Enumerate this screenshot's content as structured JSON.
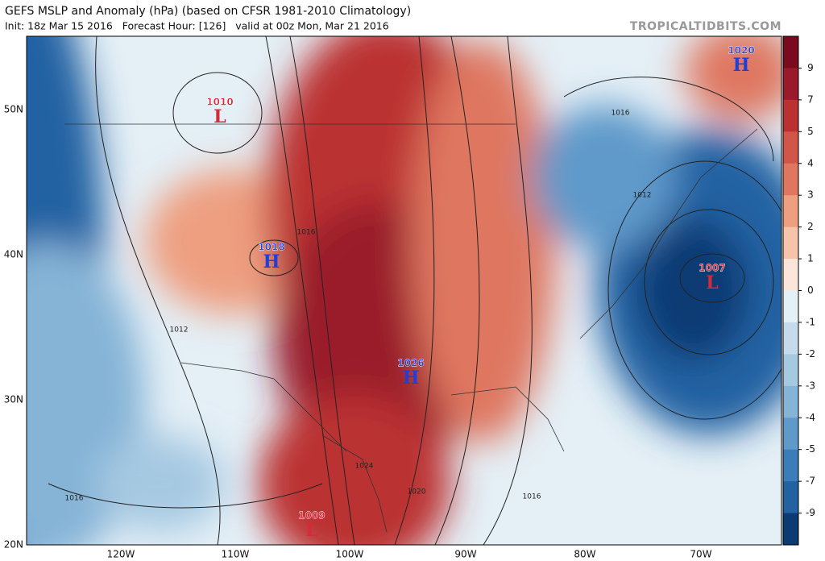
{
  "header": {
    "title": "GEFS MSLP and Anomaly (hPa) (based on CFSR 1981-2010 Climatology)",
    "subtitle": "Init: 18z Mar 15 2016   Forecast Hour: [126]   valid at 00z Mon, Mar 21 2016",
    "watermark": "TROPICALTIDBITS.COM"
  },
  "map": {
    "lat_labels": [
      "50N",
      "40N",
      "30N",
      "20N"
    ],
    "lon_labels": [
      "120W",
      "110W",
      "100W",
      "90W",
      "80W",
      "70W"
    ],
    "centers": [
      {
        "value": "1010",
        "letter": "L"
      },
      {
        "value": "1018",
        "letter": "H"
      },
      {
        "value": "1026",
        "letter": "H"
      },
      {
        "value": "1020",
        "letter": "H"
      },
      {
        "value": "1007",
        "letter": "L"
      },
      {
        "value": "1009",
        "letter": "L"
      }
    ],
    "contour_labels": [
      "1016",
      "1016",
      "1012",
      "1012",
      "1016",
      "1024",
      "1020",
      "1016"
    ]
  },
  "colorbar": {
    "ticks": [
      9,
      7,
      5,
      4,
      3,
      2,
      1,
      0,
      -1,
      -2,
      -3,
      -4,
      -5,
      -7,
      -9
    ],
    "colors": [
      "#7a0b1f",
      "#9a1a2b",
      "#bb3030",
      "#d2554a",
      "#df7760",
      "#ee9f80",
      "#f6c4ab",
      "#fce5d9",
      "#e4eff6",
      "#c5dbeb",
      "#a6c9e2",
      "#85b4d7",
      "#5e9aca",
      "#3b7db9",
      "#2262a3",
      "#0c3a73"
    ]
  }
}
